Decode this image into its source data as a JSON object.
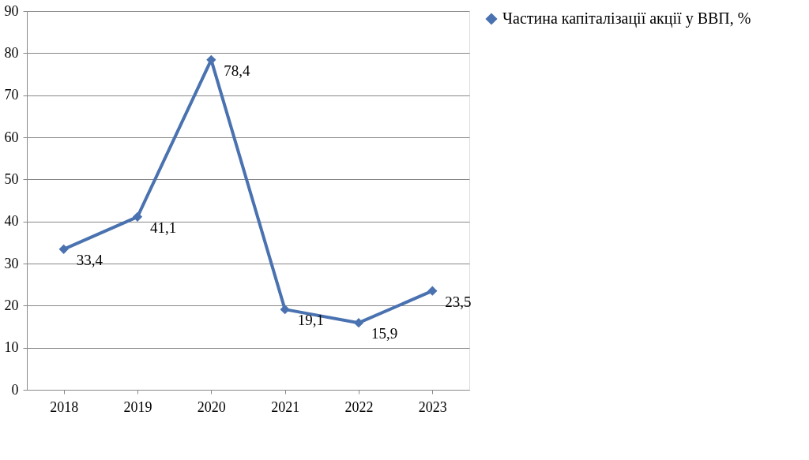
{
  "chart_data": {
    "type": "line",
    "categories": [
      "2018",
      "2019",
      "2020",
      "2021",
      "2022",
      "2023"
    ],
    "series": [
      {
        "name": "Частина капіталізації акції у ВВП, %",
        "color": "#4a72b0",
        "values": [
          33.4,
          41.1,
          78.4,
          19.1,
          15.9,
          23.5
        ],
        "value_labels": [
          "33,4",
          "41,1",
          "78,4",
          "19,1",
          "15,9",
          "23,5"
        ]
      }
    ],
    "ylim": [
      0,
      90
    ],
    "yticks": [
      0,
      10,
      20,
      30,
      40,
      50,
      60,
      70,
      80,
      90
    ],
    "grid": "y",
    "legend": "right",
    "marker": "diamond",
    "line_style": "solid"
  }
}
